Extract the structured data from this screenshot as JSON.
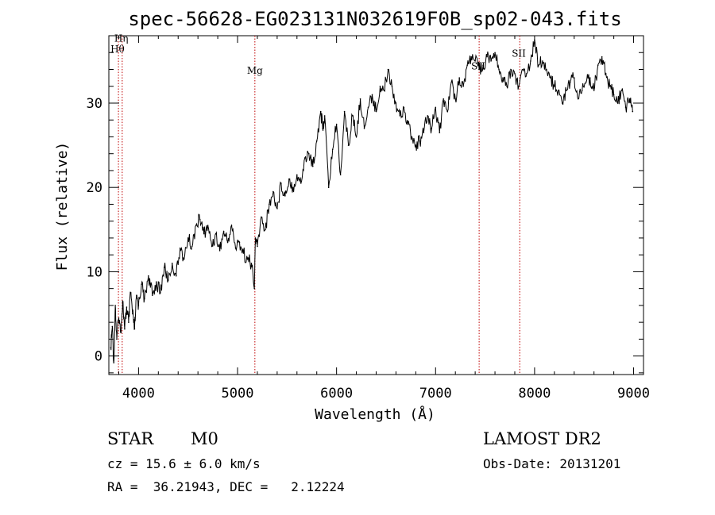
{
  "chart_data": {
    "type": "line",
    "title": "spec-56628-EG023131N032619F0B_sp02-043.fits",
    "xlabel": "Wavelength (Å)",
    "ylabel": "Flux (relative)",
    "xlim": [
      3700,
      9100
    ],
    "ylim": [
      -2.2,
      38
    ],
    "xticks": [
      4000,
      5000,
      6000,
      7000,
      8000,
      9000
    ],
    "yticks": [
      0,
      10,
      20,
      30
    ],
    "line_color": "#000000",
    "marker_color": "#c00000",
    "spectral_lines": [
      {
        "label": "Hη",
        "x": 3835,
        "label_y": 37.3
      },
      {
        "label": "Hθ",
        "x": 3797,
        "label_y": 36.0
      },
      {
        "label": "Mg",
        "x": 5175,
        "label_y": 33.5
      },
      {
        "label": "SII",
        "x": 7440,
        "label_y": 34.0
      },
      {
        "label": "SII",
        "x": 7850,
        "label_y": 35.5
      }
    ],
    "series": [
      {
        "x": [
          3720,
          3735,
          3750,
          3765,
          3780,
          3800,
          3820,
          3840,
          3860,
          3880,
          3900,
          3920,
          3940,
          3960,
          3980,
          4000,
          4030,
          4060,
          4100,
          4140,
          4180,
          4220,
          4260,
          4300,
          4340,
          4380,
          4420,
          4460,
          4500,
          4540,
          4580,
          4620,
          4660,
          4700,
          4740,
          4780,
          4820,
          4860,
          4900,
          4940,
          4980,
          5020,
          5060,
          5100,
          5140,
          5170,
          5180,
          5200,
          5240,
          5280,
          5320,
          5360,
          5400,
          5440,
          5480,
          5520,
          5560,
          5600,
          5640,
          5680,
          5720,
          5760,
          5800,
          5840,
          5860,
          5880,
          5920,
          5960,
          6000,
          6040,
          6080,
          6120,
          6160,
          6200,
          6240,
          6280,
          6320,
          6360,
          6400,
          6440,
          6480,
          6520,
          6560,
          6600,
          6640,
          6680,
          6720,
          6760,
          6800,
          6840,
          6880,
          6920,
          6960,
          7000,
          7040,
          7080,
          7120,
          7160,
          7200,
          7240,
          7280,
          7320,
          7360,
          7400,
          7440,
          7480,
          7520,
          7560,
          7600,
          7640,
          7680,
          7720,
          7760,
          7800,
          7840,
          7880,
          7920,
          7960,
          8000,
          8040,
          8080,
          8120,
          8160,
          8200,
          8240,
          8280,
          8320,
          8360,
          8400,
          8440,
          8480,
          8520,
          8560,
          8600,
          8640,
          8680,
          8720,
          8760,
          8800,
          8840,
          8880,
          8920,
          8960,
          8990
        ],
        "y": [
          1.0,
          3.5,
          -0.8,
          6.0,
          2.0,
          4.5,
          2.8,
          6.5,
          3.2,
          5.8,
          4.0,
          7.5,
          5.0,
          3.2,
          7.2,
          6.0,
          8.5,
          6.8,
          9.5,
          7.2,
          8.8,
          7.5,
          10.5,
          9.0,
          11.0,
          9.5,
          12.8,
          11.5,
          14.0,
          13.0,
          15.5,
          16.2,
          14.5,
          15.5,
          13.0,
          14.5,
          12.5,
          14.8,
          13.5,
          15.5,
          12.8,
          13.5,
          12.2,
          11.5,
          11.0,
          8.0,
          14.0,
          13.0,
          16.5,
          15.0,
          18.0,
          19.5,
          17.5,
          20.5,
          19.0,
          21.0,
          20.0,
          21.5,
          20.5,
          23.5,
          24.0,
          22.5,
          25.5,
          29.0,
          27.0,
          28.5,
          20.0,
          24.5,
          27.5,
          21.5,
          29.0,
          25.0,
          28.5,
          26.0,
          30.5,
          27.0,
          29.5,
          31.0,
          29.0,
          32.0,
          31.5,
          34.0,
          32.0,
          30.0,
          28.5,
          29.5,
          27.5,
          26.0,
          25.0,
          25.5,
          26.5,
          28.5,
          27.0,
          29.5,
          26.5,
          30.5,
          29.0,
          32.5,
          30.5,
          33.0,
          32.0,
          34.5,
          35.5,
          35.0,
          34.0,
          34.5,
          35.5,
          35.0,
          36.0,
          34.0,
          33.0,
          32.0,
          34.0,
          33.5,
          32.0,
          34.0,
          33.5,
          35.0,
          37.5,
          34.5,
          35.0,
          34.0,
          33.0,
          32.0,
          31.5,
          30.0,
          31.5,
          32.5,
          33.0,
          30.5,
          31.5,
          32.5,
          33.0,
          31.5,
          34.5,
          35.5,
          33.5,
          32.0,
          31.0,
          30.0,
          31.5,
          29.5,
          30.5,
          29.0
        ]
      }
    ]
  },
  "info": {
    "class": "STAR",
    "subclass": "M0",
    "survey": "LAMOST DR2",
    "cz": "cz = 15.6 ± 6.0 km/s",
    "obs_date": "Obs-Date: 20131201",
    "radec": "RA =  36.21943, DEC =   2.12224"
  }
}
